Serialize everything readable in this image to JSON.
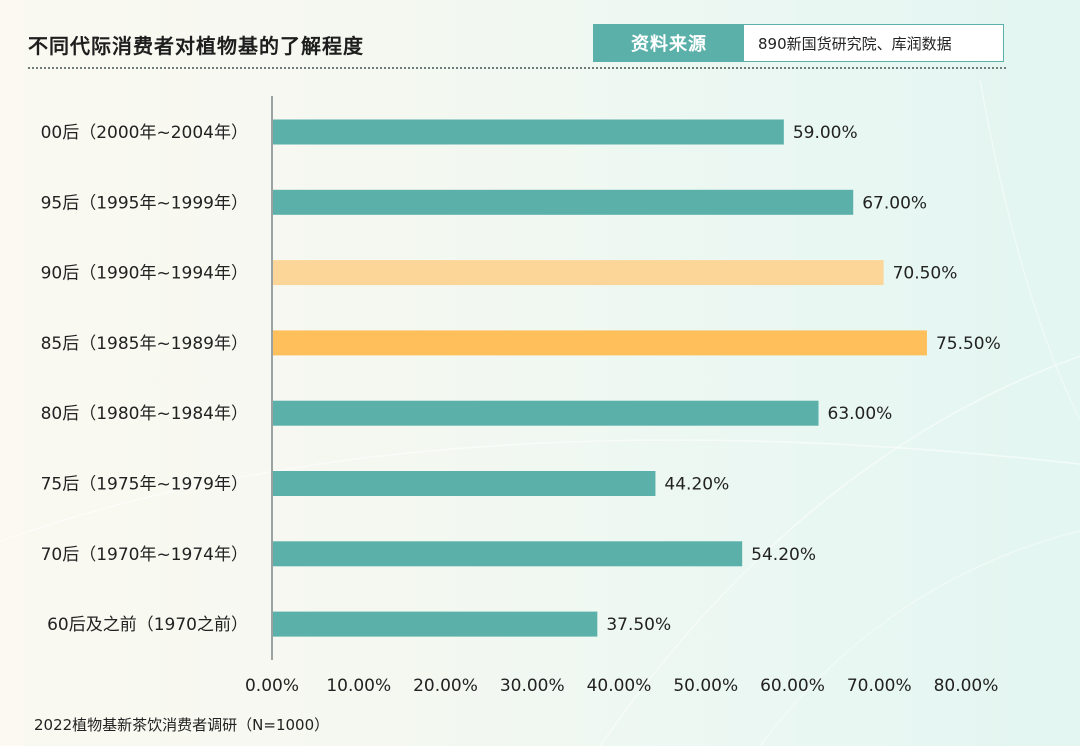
{
  "header": {
    "title": "不同代际消费者对植物基的了解程度",
    "source_tag": "资料来源",
    "source_text": "890新国货研究院、库润数据"
  },
  "footnote": "2022植物基新茶饮消费者调研（N=1000）",
  "colors": {
    "bar_default": "#5bb0aa",
    "bar_light_highlight": "#fcd699",
    "bar_highlight": "#ffc05c",
    "axis": "#9aa3a1",
    "tag_bg": "#5bb0aa"
  },
  "chart_data": {
    "type": "bar",
    "orientation": "horizontal",
    "categories": [
      "00后（2000年~2004年）",
      "95后（1995年~1999年）",
      "90后（1990年~1994年）",
      "85后（1985年~1989年）",
      "80后（1980年~1984年）",
      "75后（1975年~1979年）",
      "70后（1970年~1974年）",
      "60后及之前（1970之前）"
    ],
    "values": [
      59.0,
      67.0,
      70.5,
      75.5,
      63.0,
      44.2,
      54.2,
      37.5
    ],
    "value_labels": [
      "59.00%",
      "67.00%",
      "70.50%",
      "75.50%",
      "63.00%",
      "44.20%",
      "54.20%",
      "37.50%"
    ],
    "bar_colors": [
      "#5bb0aa",
      "#5bb0aa",
      "#fcd699",
      "#ffc05c",
      "#5bb0aa",
      "#5bb0aa",
      "#5bb0aa",
      "#5bb0aa"
    ],
    "xlim": [
      0,
      80
    ],
    "xticks": [
      0,
      10,
      20,
      30,
      40,
      50,
      60,
      70,
      80
    ],
    "xtick_labels": [
      "0.00%",
      "10.00%",
      "20.00%",
      "30.00%",
      "40.00%",
      "50.00%",
      "60.00%",
      "70.00%",
      "80.00%"
    ],
    "grid": false,
    "legend": "none"
  }
}
